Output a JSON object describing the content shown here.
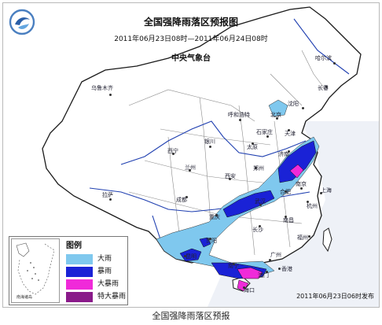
{
  "map": {
    "title": "全国强降雨落区预报图",
    "period": "2011年06月23日08时—2011年06月24日08时",
    "issuer": "中央气象台",
    "issue_time": "2011年06月23日06时发布",
    "caption": "全国强降雨落区预报",
    "inset_label": "南海诸岛"
  },
  "legend": {
    "title": "图例",
    "items": [
      {
        "label": "大雨",
        "color": "#7fc8ee"
      },
      {
        "label": "暴雨",
        "color": "#1a22d6"
      },
      {
        "label": "大暴雨",
        "color": "#f02ad9"
      },
      {
        "label": "特大暴雨",
        "color": "#8a1a8a"
      }
    ]
  },
  "cities": [
    {
      "name": "乌鲁木齐",
      "dot": true
    },
    {
      "name": "哈尔滨",
      "dot": true
    },
    {
      "name": "长春",
      "dot": true
    },
    {
      "name": "沈阳",
      "dot": true
    },
    {
      "name": "北京",
      "dot": true
    },
    {
      "name": "天津",
      "dot": true
    },
    {
      "name": "呼和浩特",
      "dot": true
    },
    {
      "name": "石家庄",
      "dot": true
    },
    {
      "name": "太原",
      "dot": true
    },
    {
      "name": "银川",
      "dot": true
    },
    {
      "name": "济南",
      "dot": true
    },
    {
      "name": "西宁",
      "dot": true
    },
    {
      "name": "兰州",
      "dot": true
    },
    {
      "name": "郑州",
      "dot": true
    },
    {
      "name": "西安",
      "dot": true
    },
    {
      "name": "合肥",
      "dot": true
    },
    {
      "name": "南京",
      "dot": true
    },
    {
      "name": "上海",
      "dot": true
    },
    {
      "name": "杭州",
      "dot": true
    },
    {
      "name": "武汉",
      "dot": true
    },
    {
      "name": "成都",
      "dot": true
    },
    {
      "name": "重庆",
      "dot": true
    },
    {
      "name": "拉萨",
      "dot": true
    },
    {
      "name": "长沙",
      "dot": true
    },
    {
      "name": "南昌",
      "dot": true
    },
    {
      "name": "福州",
      "dot": true
    },
    {
      "name": "贵阳",
      "dot": true
    },
    {
      "name": "昆明",
      "dot": true
    },
    {
      "name": "南宁",
      "dot": true
    },
    {
      "name": "广州",
      "dot": true
    },
    {
      "name": "香港",
      "dot": true
    },
    {
      "name": "澳门",
      "dot": true
    },
    {
      "name": "海口",
      "dot": true
    }
  ]
}
